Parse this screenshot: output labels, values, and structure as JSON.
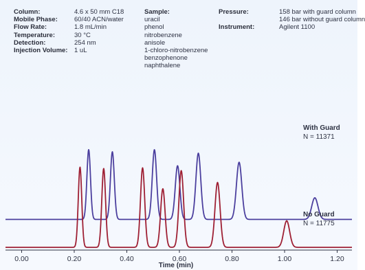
{
  "conditions": {
    "left": [
      {
        "key": "Column:",
        "value": "4.6 x 50 mm C18"
      },
      {
        "key": "Mobile Phase:",
        "value": "60/40 ACN/water"
      },
      {
        "key": "Flow Rate:",
        "value": "1.8 mL/min"
      },
      {
        "key": "Temperature:",
        "value": "30 °C"
      },
      {
        "key": "Detection:",
        "value": "254 nm"
      },
      {
        "key": "Injection Volume:",
        "value": "1 uL"
      }
    ],
    "sample": {
      "key": "Sample:",
      "items": [
        "uracil",
        "phenol",
        "nitrobenzene",
        "anisole",
        "1-chloro-nitrobenzene",
        "benzophenone",
        "naphthalene"
      ]
    },
    "pressure": {
      "key": "Pressure:",
      "lines": [
        "158 bar with guard column",
        "146 bar without guard column"
      ]
    },
    "instrument": {
      "key": "Instrument:",
      "value": "Agilent 1100"
    }
  },
  "chart_data": {
    "type": "line",
    "xlabel": "Time (min)",
    "ylabel": "",
    "xlim": [
      -0.03,
      1.23
    ],
    "x_ticks": [
      "0.00",
      "0.20",
      "0.40",
      "0.60",
      "0.80",
      "1.00",
      "1.20"
    ],
    "x_tick_values": [
      0.0,
      0.2,
      0.4,
      0.6,
      0.8,
      1.0,
      1.2
    ],
    "grid": false,
    "series": [
      {
        "name": "With Guard",
        "note": "N = 11371",
        "color": "#4b3f9e",
        "baseline_level": 0.2,
        "peaks": [
          {
            "t": 0.255,
            "height": 1.0
          },
          {
            "t": 0.345,
            "height": 0.97
          },
          {
            "t": 0.505,
            "height": 1.0
          },
          {
            "t": 0.593,
            "height": 0.77
          },
          {
            "t": 0.672,
            "height": 0.95
          },
          {
            "t": 0.827,
            "height": 0.82
          },
          {
            "t": 1.115,
            "height": 0.31
          }
        ]
      },
      {
        "name": "No Guard",
        "note": "N = 11775",
        "color": "#9e1f33",
        "baseline_level": 0.0,
        "peaks": [
          {
            "t": 0.222,
            "height": 1.15
          },
          {
            "t": 0.312,
            "height": 1.13
          },
          {
            "t": 0.46,
            "height": 1.14
          },
          {
            "t": 0.537,
            "height": 0.84
          },
          {
            "t": 0.607,
            "height": 1.1
          },
          {
            "t": 0.745,
            "height": 0.93
          },
          {
            "t": 1.008,
            "height": 0.38
          }
        ]
      }
    ]
  }
}
